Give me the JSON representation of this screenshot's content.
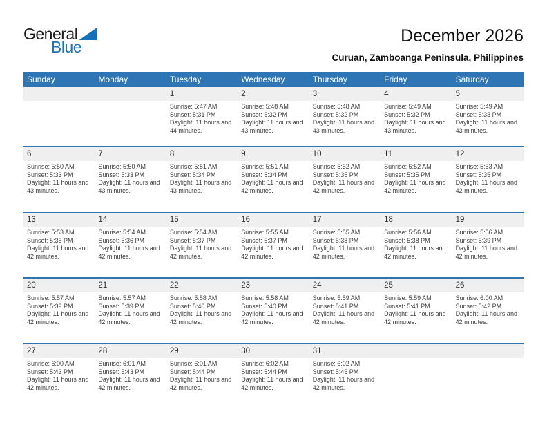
{
  "logo": {
    "part1": "General",
    "part2": "Blue"
  },
  "header": {
    "title": "December 2026",
    "subtitle": "Curuan, Zamboanga Peninsula, Philippines"
  },
  "labels": {
    "sunrise": "Sunrise:",
    "sunset": "Sunset:",
    "daylight": "Daylight:"
  },
  "weekdays": [
    "Sunday",
    "Monday",
    "Tuesday",
    "Wednesday",
    "Thursday",
    "Friday",
    "Saturday"
  ],
  "colors": {
    "header_blue": "#2e75b6",
    "row_line_blue": "#2e75b6",
    "num_band_gray": "#efefef",
    "logo_blue": "#1b75bb",
    "text": "#3d3d3d"
  },
  "weeks": [
    {
      "days": [
        null,
        null,
        {
          "n": "1",
          "sunrise": "5:47 AM",
          "sunset": "5:31 PM",
          "daylight": "11 hours and 44 minutes."
        },
        {
          "n": "2",
          "sunrise": "5:48 AM",
          "sunset": "5:32 PM",
          "daylight": "11 hours and 43 minutes."
        },
        {
          "n": "3",
          "sunrise": "5:48 AM",
          "sunset": "5:32 PM",
          "daylight": "11 hours and 43 minutes."
        },
        {
          "n": "4",
          "sunrise": "5:49 AM",
          "sunset": "5:32 PM",
          "daylight": "11 hours and 43 minutes."
        },
        {
          "n": "5",
          "sunrise": "5:49 AM",
          "sunset": "5:33 PM",
          "daylight": "11 hours and 43 minutes."
        }
      ]
    },
    {
      "days": [
        {
          "n": "6",
          "sunrise": "5:50 AM",
          "sunset": "5:33 PM",
          "daylight": "11 hours and 43 minutes."
        },
        {
          "n": "7",
          "sunrise": "5:50 AM",
          "sunset": "5:33 PM",
          "daylight": "11 hours and 43 minutes."
        },
        {
          "n": "8",
          "sunrise": "5:51 AM",
          "sunset": "5:34 PM",
          "daylight": "11 hours and 43 minutes."
        },
        {
          "n": "9",
          "sunrise": "5:51 AM",
          "sunset": "5:34 PM",
          "daylight": "11 hours and 42 minutes."
        },
        {
          "n": "10",
          "sunrise": "5:52 AM",
          "sunset": "5:35 PM",
          "daylight": "11 hours and 42 minutes."
        },
        {
          "n": "11",
          "sunrise": "5:52 AM",
          "sunset": "5:35 PM",
          "daylight": "11 hours and 42 minutes."
        },
        {
          "n": "12",
          "sunrise": "5:53 AM",
          "sunset": "5:35 PM",
          "daylight": "11 hours and 42 minutes."
        }
      ]
    },
    {
      "days": [
        {
          "n": "13",
          "sunrise": "5:53 AM",
          "sunset": "5:36 PM",
          "daylight": "11 hours and 42 minutes."
        },
        {
          "n": "14",
          "sunrise": "5:54 AM",
          "sunset": "5:36 PM",
          "daylight": "11 hours and 42 minutes."
        },
        {
          "n": "15",
          "sunrise": "5:54 AM",
          "sunset": "5:37 PM",
          "daylight": "11 hours and 42 minutes."
        },
        {
          "n": "16",
          "sunrise": "5:55 AM",
          "sunset": "5:37 PM",
          "daylight": "11 hours and 42 minutes."
        },
        {
          "n": "17",
          "sunrise": "5:55 AM",
          "sunset": "5:38 PM",
          "daylight": "11 hours and 42 minutes."
        },
        {
          "n": "18",
          "sunrise": "5:56 AM",
          "sunset": "5:38 PM",
          "daylight": "11 hours and 42 minutes."
        },
        {
          "n": "19",
          "sunrise": "5:56 AM",
          "sunset": "5:39 PM",
          "daylight": "11 hours and 42 minutes."
        }
      ]
    },
    {
      "days": [
        {
          "n": "20",
          "sunrise": "5:57 AM",
          "sunset": "5:39 PM",
          "daylight": "11 hours and 42 minutes."
        },
        {
          "n": "21",
          "sunrise": "5:57 AM",
          "sunset": "5:39 PM",
          "daylight": "11 hours and 42 minutes."
        },
        {
          "n": "22",
          "sunrise": "5:58 AM",
          "sunset": "5:40 PM",
          "daylight": "11 hours and 42 minutes."
        },
        {
          "n": "23",
          "sunrise": "5:58 AM",
          "sunset": "5:40 PM",
          "daylight": "11 hours and 42 minutes."
        },
        {
          "n": "24",
          "sunrise": "5:59 AM",
          "sunset": "5:41 PM",
          "daylight": "11 hours and 42 minutes."
        },
        {
          "n": "25",
          "sunrise": "5:59 AM",
          "sunset": "5:41 PM",
          "daylight": "11 hours and 42 minutes."
        },
        {
          "n": "26",
          "sunrise": "6:00 AM",
          "sunset": "5:42 PM",
          "daylight": "11 hours and 42 minutes."
        }
      ]
    },
    {
      "days": [
        {
          "n": "27",
          "sunrise": "6:00 AM",
          "sunset": "5:43 PM",
          "daylight": "11 hours and 42 minutes."
        },
        {
          "n": "28",
          "sunrise": "6:01 AM",
          "sunset": "5:43 PM",
          "daylight": "11 hours and 42 minutes."
        },
        {
          "n": "29",
          "sunrise": "6:01 AM",
          "sunset": "5:44 PM",
          "daylight": "11 hours and 42 minutes."
        },
        {
          "n": "30",
          "sunrise": "6:02 AM",
          "sunset": "5:44 PM",
          "daylight": "11 hours and 42 minutes."
        },
        {
          "n": "31",
          "sunrise": "6:02 AM",
          "sunset": "5:45 PM",
          "daylight": "11 hours and 42 minutes."
        },
        null,
        null
      ]
    }
  ]
}
